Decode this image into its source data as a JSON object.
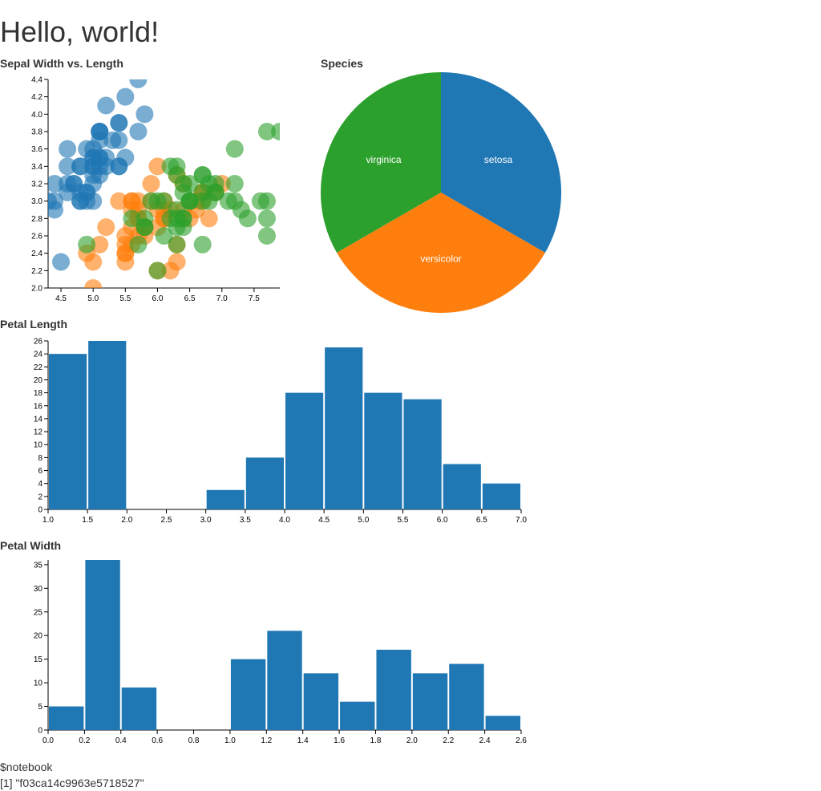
{
  "heading": "Hello, world!",
  "chart_data": [
    {
      "type": "scatter",
      "title": "Sepal Width vs. Length",
      "xlim": [
        4.3,
        7.9
      ],
      "ylim": [
        2.0,
        4.4
      ],
      "xticks": [
        4.5,
        {
          "value": 5.0,
          "label": "5.0"
        },
        5.5,
        {
          "value": 6.0,
          "label": "6.0"
        },
        6.5,
        {
          "value": 7.0,
          "label": "7.0"
        },
        7.5
      ],
      "yticks": [
        {
          "value": 2.0,
          "label": "2.0"
        },
        2.2,
        2.4,
        2.6,
        2.8,
        {
          "value": 3.0,
          "label": "3.0"
        },
        3.2,
        3.4,
        3.6,
        3.8,
        {
          "value": 4.0,
          "label": "4.0"
        },
        4.2,
        4.4
      ],
      "series": [
        {
          "color": "#1f77b4",
          "x": [
            5.1,
            4.9,
            4.7,
            4.6,
            5.0,
            5.4,
            4.6,
            5.0,
            4.4,
            4.9,
            5.4,
            4.8,
            4.8,
            4.3,
            5.8,
            5.7,
            5.4,
            5.1,
            5.7,
            5.1,
            5.4,
            5.1,
            4.6,
            5.1,
            4.8,
            5.0,
            5.0,
            5.2,
            5.2,
            4.7,
            4.8,
            5.4,
            5.2,
            5.5,
            4.9,
            5.0,
            5.5,
            4.9,
            4.4,
            5.1,
            5.0,
            4.5,
            4.4,
            5.0,
            5.1,
            4.8,
            5.1,
            4.6,
            5.3,
            5.0
          ],
          "y": [
            3.5,
            3.0,
            3.2,
            3.1,
            3.6,
            3.9,
            3.4,
            3.4,
            2.9,
            3.1,
            3.7,
            3.4,
            3.0,
            3.0,
            4.0,
            4.4,
            3.9,
            3.5,
            3.8,
            3.8,
            3.4,
            3.7,
            3.6,
            3.3,
            3.4,
            3.0,
            3.4,
            3.5,
            3.4,
            3.2,
            3.1,
            3.4,
            4.1,
            4.2,
            3.1,
            3.2,
            3.5,
            3.6,
            3.0,
            3.4,
            3.5,
            2.3,
            3.2,
            3.5,
            3.8,
            3.0,
            3.8,
            3.2,
            3.7,
            3.3
          ]
        },
        {
          "color": "#ff7f0e",
          "x": [
            7.0,
            6.4,
            6.9,
            5.5,
            6.5,
            5.7,
            6.3,
            4.9,
            6.6,
            5.2,
            5.0,
            5.9,
            6.0,
            6.1,
            5.6,
            6.7,
            5.6,
            5.8,
            6.2,
            5.6,
            5.9,
            6.1,
            6.3,
            6.1,
            6.4,
            6.6,
            6.8,
            6.7,
            6.0,
            5.7,
            5.5,
            5.5,
            5.8,
            6.0,
            5.4,
            6.0,
            6.7,
            6.3,
            5.6,
            5.5,
            5.5,
            6.1,
            5.8,
            5.0,
            5.6,
            5.7,
            5.7,
            6.2,
            5.1,
            5.7
          ],
          "y": [
            3.2,
            3.2,
            3.1,
            2.3,
            2.8,
            2.8,
            3.3,
            2.4,
            2.9,
            2.7,
            2.0,
            3.0,
            2.2,
            2.9,
            2.9,
            3.1,
            3.0,
            2.7,
            2.2,
            2.5,
            3.2,
            2.8,
            2.5,
            2.8,
            2.9,
            3.0,
            2.8,
            3.0,
            2.9,
            2.6,
            2.4,
            2.4,
            2.7,
            2.7,
            3.0,
            3.4,
            3.1,
            2.3,
            3.0,
            2.5,
            2.6,
            3.0,
            2.6,
            2.3,
            2.7,
            3.0,
            2.9,
            2.9,
            2.5,
            2.8
          ]
        },
        {
          "color": "#2ca02c",
          "x": [
            6.3,
            5.8,
            7.1,
            6.3,
            6.5,
            7.6,
            4.9,
            7.3,
            6.7,
            7.2,
            6.5,
            6.4,
            6.8,
            5.7,
            5.8,
            6.4,
            6.5,
            7.7,
            7.7,
            6.0,
            6.9,
            5.6,
            7.7,
            6.3,
            6.7,
            7.2,
            6.2,
            6.1,
            6.4,
            7.2,
            7.4,
            7.9,
            6.4,
            6.3,
            6.1,
            7.7,
            6.3,
            6.4,
            6.0,
            6.9,
            6.7,
            6.9,
            5.8,
            6.8,
            6.7,
            6.7,
            6.3,
            6.5,
            6.2,
            5.9
          ],
          "y": [
            3.3,
            2.7,
            3.0,
            2.9,
            3.0,
            3.0,
            2.5,
            2.9,
            2.5,
            3.6,
            3.2,
            2.7,
            3.0,
            2.5,
            2.8,
            3.2,
            3.0,
            3.8,
            2.6,
            2.2,
            3.2,
            2.8,
            2.8,
            2.7,
            3.3,
            3.2,
            2.8,
            3.0,
            2.8,
            3.0,
            2.8,
            3.8,
            2.8,
            2.8,
            2.6,
            3.0,
            3.4,
            3.1,
            3.0,
            3.1,
            3.1,
            3.1,
            2.7,
            3.2,
            3.3,
            3.0,
            2.5,
            3.0,
            3.4,
            3.0
          ]
        }
      ]
    },
    {
      "type": "pie",
      "title": "Species",
      "categories": [
        "setosa",
        "versicolor",
        "virginica"
      ],
      "values": [
        50,
        50,
        50
      ],
      "colors": [
        "#1f77b4",
        "#ff7f0e",
        "#2ca02c"
      ]
    },
    {
      "type": "histogram",
      "title": "Petal Length",
      "color": "#1f77b4",
      "bins": [
        1.0,
        1.5,
        2.0,
        2.5,
        3.0,
        3.5,
        4.0,
        4.5,
        5.0,
        5.5,
        6.0,
        6.5,
        7.0
      ],
      "values": [
        24,
        26,
        0,
        0,
        3,
        8,
        18,
        25,
        18,
        17,
        7,
        4
      ],
      "xlim": [
        1.0,
        7.0
      ],
      "ylim": [
        0,
        26
      ],
      "xticks": [
        {
          "value": 1.0,
          "label": "1.0"
        },
        1.5,
        {
          "value": 2.0,
          "label": "2.0"
        },
        2.5,
        {
          "value": 3.0,
          "label": "3.0"
        },
        3.5,
        {
          "value": 4.0,
          "label": "4.0"
        },
        4.5,
        {
          "value": 5.0,
          "label": "5.0"
        },
        5.5,
        {
          "value": 6.0,
          "label": "6.0"
        },
        6.5,
        {
          "value": 7.0,
          "label": "7.0"
        }
      ],
      "yticks": [
        0,
        2,
        4,
        6,
        8,
        10,
        12,
        14,
        16,
        18,
        20,
        22,
        24,
        26
      ]
    },
    {
      "type": "histogram",
      "title": "Petal Width",
      "color": "#1f77b4",
      "bins": [
        0.0,
        0.2,
        0.4,
        0.6,
        0.8,
        1.0,
        1.2,
        1.4,
        1.6,
        1.8,
        2.0,
        2.2,
        2.4,
        2.6
      ],
      "values": [
        5,
        36,
        9,
        0,
        0,
        15,
        21,
        12,
        6,
        17,
        12,
        14,
        3
      ],
      "xlim": [
        0.0,
        2.6
      ],
      "ylim": [
        0,
        36
      ],
      "xticks": [
        {
          "value": 0.0,
          "label": "0.0"
        },
        0.2,
        0.4,
        0.6,
        0.8,
        {
          "value": 1.0,
          "label": "1.0"
        },
        1.2,
        1.4,
        1.6,
        1.8,
        {
          "value": 2.0,
          "label": "2.0"
        },
        2.2,
        2.4,
        2.6
      ],
      "yticks": [
        0,
        5,
        10,
        15,
        20,
        25,
        30,
        35
      ]
    }
  ],
  "output": [
    "$notebook",
    "[1] \"f03ca14c9963e5718527\""
  ]
}
